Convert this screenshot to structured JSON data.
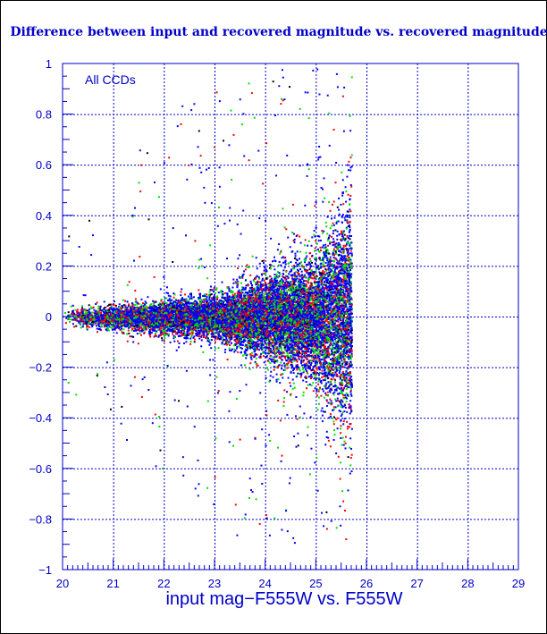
{
  "chart_data": {
    "type": "scatter",
    "title": "Difference between input and recovered magnitude vs. recovered magnitude",
    "xlabel": "input mag−F555W vs. F555W",
    "ylabel": "",
    "annotation": "All CCDs",
    "xlim": [
      20,
      29
    ],
    "ylim": [
      -1,
      1
    ],
    "x_ticks": [
      20,
      21,
      22,
      23,
      24,
      25,
      26,
      27,
      28,
      29
    ],
    "y_ticks": [
      1,
      0.8,
      0.6,
      0.4,
      0.2,
      0,
      -0.2,
      -0.4,
      -0.6,
      -0.8,
      -1
    ],
    "grid": true,
    "colors": {
      "axis": "#0000c8",
      "grid": "#0000c8",
      "text": "#0000c8"
    },
    "series_colors": [
      "#0000ff",
      "#00e000",
      "#ff0000",
      "#000000"
    ],
    "distribution": {
      "x_range": [
        20,
        25.7
      ],
      "cutoff_mag": 25.7,
      "center_offset": 0,
      "scatter_sigma": {
        "at_20": 0.015,
        "at_23": 0.04,
        "at_25": 0.12,
        "at_25_6": 0.2
      },
      "approx_point_count": 14000
    }
  }
}
